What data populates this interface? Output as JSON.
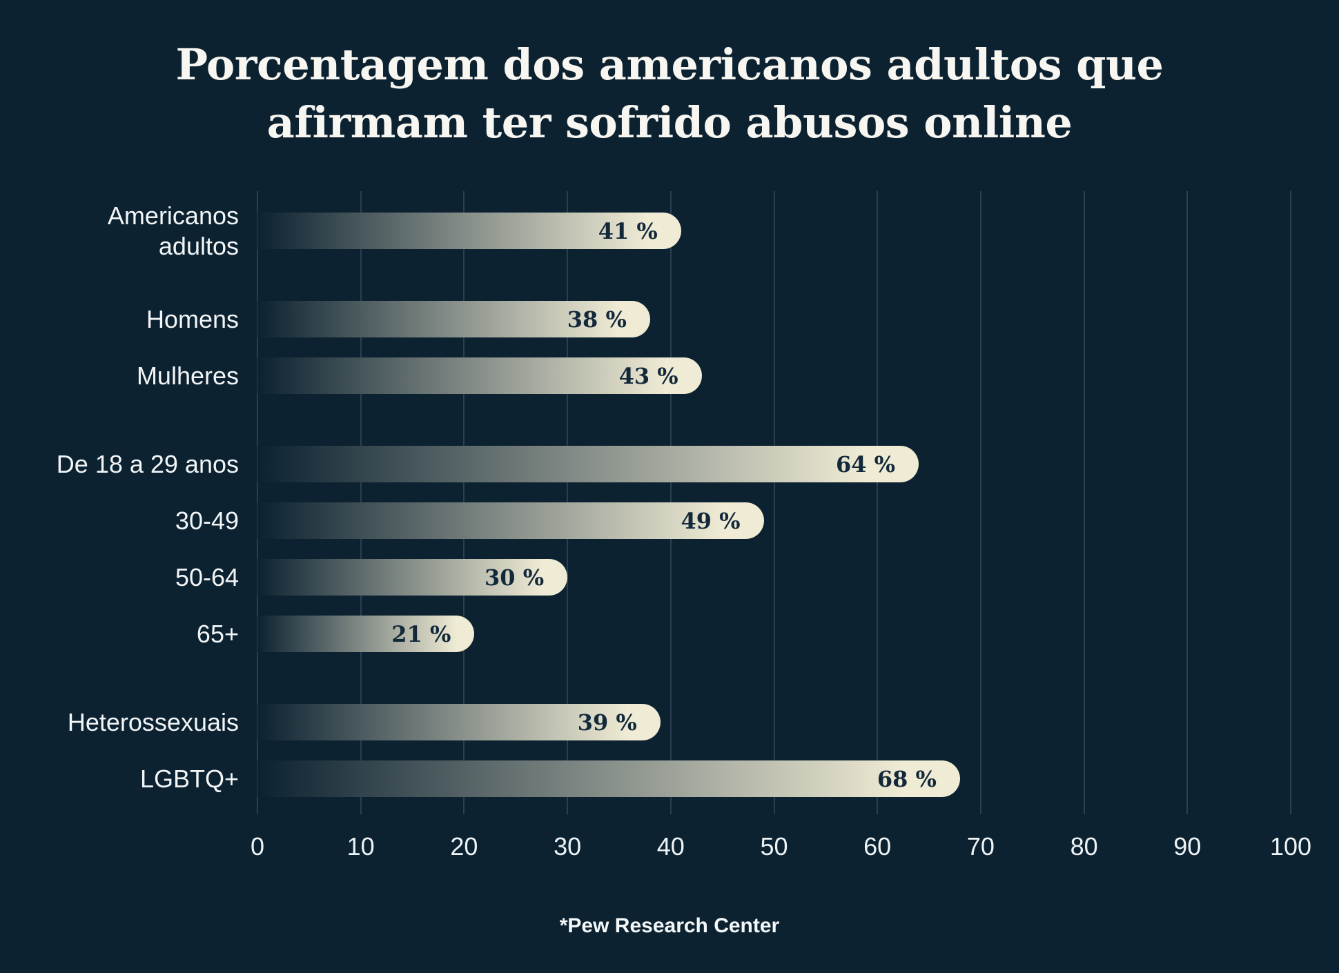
{
  "title": {
    "line1": "Porcentagem dos americanos adultos que",
    "line2": "afirmam ter sofrido abusos online"
  },
  "source": "*Pew Research Center",
  "colors": {
    "background": "#0C2231",
    "bar_gradient_start": "#0C2231",
    "bar_gradient_end": "#EFEBD4",
    "value_text": "#13293A",
    "grid_line": "#2A4052",
    "label_text": "#F2F5F6",
    "title_text": "#F7F6F1"
  },
  "chart_data": {
    "type": "bar",
    "orientation": "horizontal",
    "title": "Porcentagem dos americanos adultos que afirmam ter sofrido abusos online",
    "xlabel": "",
    "ylabel": "",
    "xlim": [
      0,
      100
    ],
    "xticks": [
      0,
      10,
      20,
      30,
      40,
      50,
      60,
      70,
      80,
      90,
      100
    ],
    "grid": true,
    "legend": false,
    "source": "*Pew Research Center",
    "categories": [
      "Americanos adultos",
      "Homens",
      "Mulheres",
      "De 18 a 29 anos",
      "30-49",
      "50-64",
      "65+",
      "Heterossexuais",
      "LGBTQ+"
    ],
    "values": [
      41,
      38,
      43,
      64,
      49,
      30,
      21,
      39,
      68
    ],
    "bars": [
      {
        "label": "Americanos\nadultos",
        "value": 41,
        "value_label": "41 %",
        "group_gap_before": false
      },
      {
        "label": "Homens",
        "value": 38,
        "value_label": "38 %",
        "group_gap_before": true
      },
      {
        "label": "Mulheres",
        "value": 43,
        "value_label": "43 %",
        "group_gap_before": false
      },
      {
        "label": "De 18 a 29 anos",
        "value": 64,
        "value_label": "64 %",
        "group_gap_before": true
      },
      {
        "label": "30-49",
        "value": 49,
        "value_label": "49 %",
        "group_gap_before": false
      },
      {
        "label": "50-64",
        "value": 30,
        "value_label": "30 %",
        "group_gap_before": false
      },
      {
        "label": "65+",
        "value": 21,
        "value_label": "21 %",
        "group_gap_before": false
      },
      {
        "label": "Heterossexuais",
        "value": 39,
        "value_label": "39 %",
        "group_gap_before": true
      },
      {
        "label": "LGBTQ+",
        "value": 68,
        "value_label": "68 %",
        "group_gap_before": false
      }
    ]
  }
}
